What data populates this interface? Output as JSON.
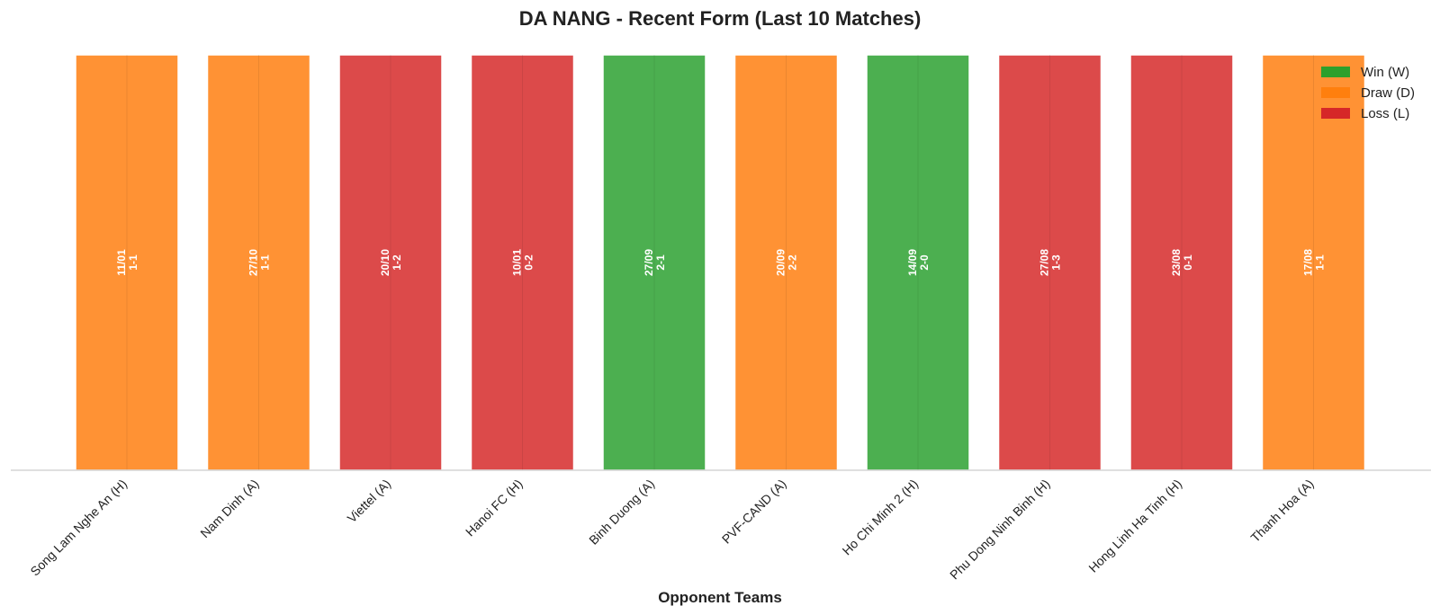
{
  "chart_data": {
    "type": "bar",
    "title": "DA NANG - Recent Form (Last 10 Matches)",
    "xlabel": "Opponent Teams",
    "ylabel": "",
    "categories": [
      "Song Lam Nghe An (H)",
      "Nam Dinh (A)",
      "Viettel (A)",
      "Hanoi FC (H)",
      "Binh Duong (A)",
      "PVF-CAND (A)",
      "Ho Chi Minh 2 (H)",
      "Phu Dong Ninh Binh (H)",
      "Hong Linh Ha Tinh (H)",
      "Thanh Hoa (A)"
    ],
    "values": [
      1,
      1,
      1,
      1,
      1,
      1,
      1,
      1,
      1,
      1
    ],
    "results": [
      "D",
      "D",
      "L",
      "L",
      "W",
      "D",
      "W",
      "L",
      "L",
      "D"
    ],
    "dates": [
      "11/01",
      "27/10",
      "20/10",
      "10/01",
      "27/09",
      "20/09",
      "14/09",
      "27/08",
      "23/08",
      "17/08"
    ],
    "scores": [
      "1-1",
      "1-1",
      "1-2",
      "0-2",
      "2-1",
      "2-2",
      "2-0",
      "1-3",
      "0-1",
      "1-1"
    ],
    "ylim": [
      0,
      1
    ],
    "grid": false,
    "legend_position": "top-right",
    "legend": [
      {
        "key": "W",
        "label": "Win (W)",
        "color": "#2ca02c"
      },
      {
        "key": "D",
        "label": "Draw (D)",
        "color": "#ff7f0e"
      },
      {
        "key": "L",
        "label": "Loss (L)",
        "color": "#d62728"
      }
    ],
    "bar_colors": {
      "W": "#4caf50",
      "D": "#ff9234",
      "L": "#dc4a4a"
    }
  }
}
